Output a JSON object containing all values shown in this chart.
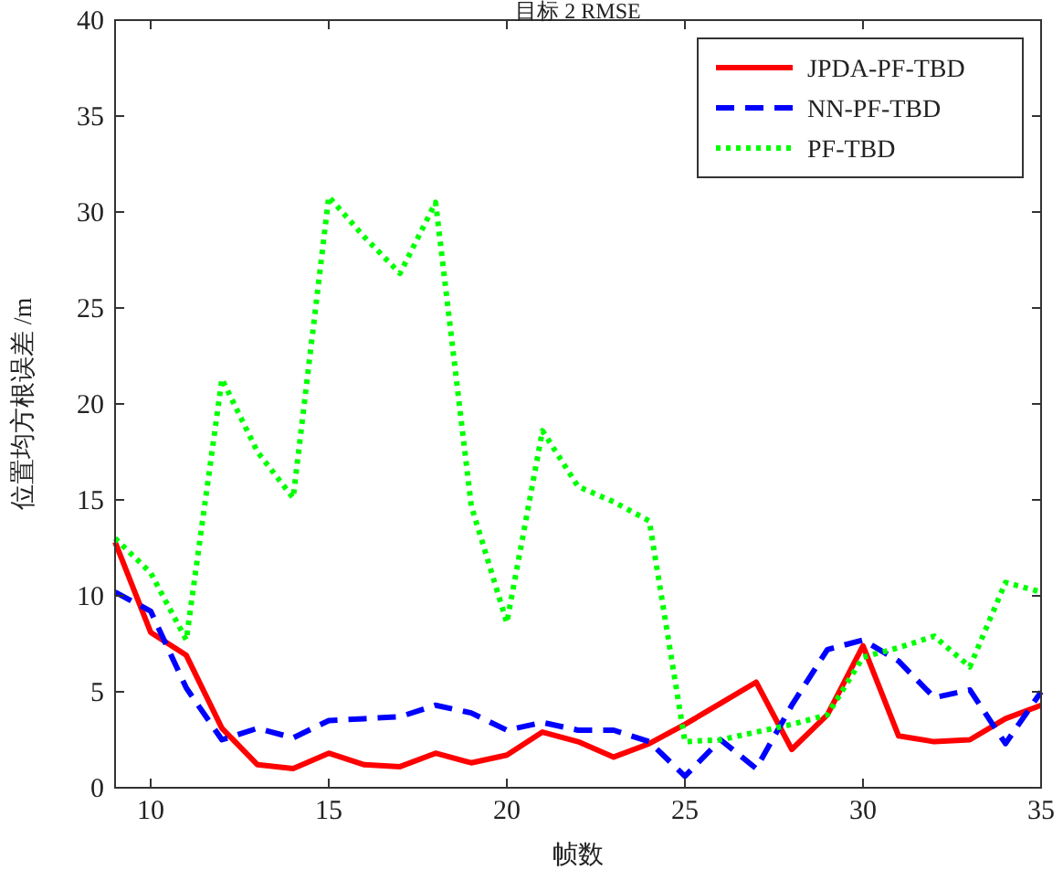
{
  "chart_data": {
    "type": "line",
    "title": "目标 2 RMSE",
    "xlabel": "帧数",
    "ylabel": "位置均方根误差 /m",
    "x": [
      9,
      10,
      11,
      12,
      13,
      14,
      15,
      16,
      17,
      18,
      19,
      20,
      21,
      22,
      23,
      24,
      25,
      26,
      27,
      28,
      29,
      30,
      31,
      32,
      33,
      34,
      35
    ],
    "series": [
      {
        "name": "JPDA-PF-TBD",
        "color": "#ff0000",
        "line_style": "solid",
        "values": [
          12.8,
          8.1,
          6.9,
          3.1,
          1.2,
          1.0,
          1.8,
          1.2,
          1.1,
          1.8,
          1.3,
          1.7,
          2.9,
          2.4,
          1.6,
          2.3,
          3.3,
          4.4,
          5.5,
          2.0,
          3.8,
          7.4,
          2.7,
          2.4,
          2.5,
          3.6,
          4.3
        ]
      },
      {
        "name": "NN-PF-TBD",
        "color": "#0000ff",
        "line_style": "dashed",
        "values": [
          10.2,
          9.2,
          5.2,
          2.5,
          3.1,
          2.6,
          3.5,
          3.6,
          3.7,
          4.3,
          3.9,
          3.0,
          3.4,
          3.0,
          3.0,
          2.4,
          0.6,
          2.5,
          1.0,
          4.3,
          7.2,
          7.7,
          6.6,
          4.7,
          5.1,
          2.3,
          5.0
        ]
      },
      {
        "name": "PF-TBD",
        "color": "#00ff00",
        "line_style": "dotted",
        "values": [
          13.0,
          11.2,
          7.7,
          21.3,
          17.5,
          15.1,
          30.8,
          28.7,
          26.8,
          30.5,
          14.7,
          8.6,
          18.6,
          15.7,
          14.9,
          13.9,
          2.4,
          2.5,
          2.9,
          3.3,
          3.8,
          6.8,
          7.3,
          7.9,
          6.3,
          10.7,
          10.2
        ]
      }
    ],
    "xlim": [
      9,
      35
    ],
    "xticks": [
      10,
      15,
      20,
      25,
      30,
      35
    ],
    "ylim": [
      0,
      40
    ],
    "yticks": [
      0,
      5,
      10,
      15,
      20,
      25,
      30,
      35,
      40
    ],
    "grid": false,
    "legend": "top right"
  }
}
